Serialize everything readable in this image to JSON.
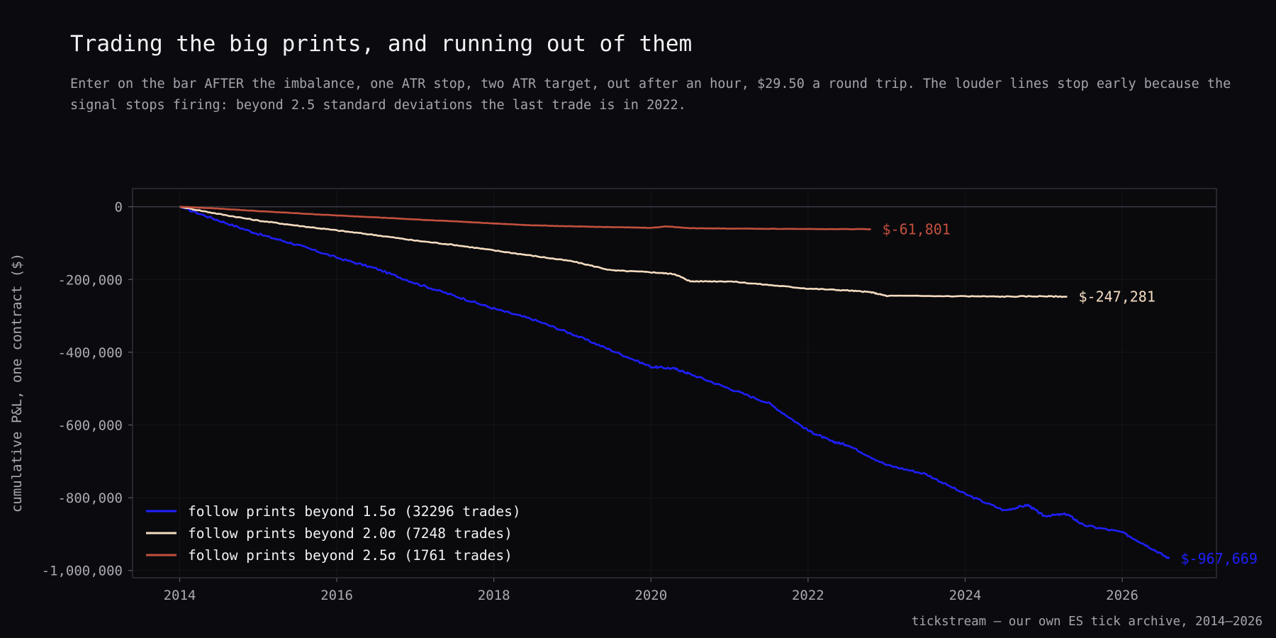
{
  "header": {
    "title": "Trading the big prints, and running out of them",
    "subtitle": "Enter on the bar AFTER the imbalance, one ATR stop, two ATR target, out after an hour, $29.50 a round trip. The louder lines stop early because the signal stops firing: beyond 2.5 standard deviations the last trade is in 2022."
  },
  "footer": {
    "source": "tickstream — our own ES tick archive, 2014–2026"
  },
  "chart_data": {
    "type": "line",
    "title": "Trading the big prints, and running out of them",
    "xlabel": "",
    "ylabel": "cumulative P&L, one contract ($)",
    "xlim": [
      2013.4,
      2027.2
    ],
    "ylim": [
      -1020000,
      50000
    ],
    "x_ticks": [
      2014,
      2016,
      2018,
      2020,
      2022,
      2024,
      2026
    ],
    "x_tick_labels": [
      "2014",
      "2016",
      "2018",
      "2020",
      "2022",
      "2024",
      "2026"
    ],
    "y_ticks": [
      0,
      -200000,
      -400000,
      -600000,
      -800000,
      -1000000
    ],
    "y_tick_labels": [
      "0",
      "-200,000",
      "-400,000",
      "-600,000",
      "-800,000",
      "-1,000,000"
    ],
    "grid": true,
    "legend_position": "bottom-left",
    "series": [
      {
        "name": "follow prints beyond 1.5σ  (32296 trades)",
        "color": "#1f1fff",
        "end_label": "$-967,669",
        "x": [
          2014.0,
          2014.5,
          2015.0,
          2015.5,
          2016.0,
          2016.5,
          2017.0,
          2017.5,
          2018.0,
          2018.5,
          2019.0,
          2019.5,
          2020.0,
          2020.3,
          2020.5,
          2021.0,
          2021.5,
          2022.0,
          2022.3,
          2022.5,
          2023.0,
          2023.5,
          2024.0,
          2024.5,
          2024.8,
          2025.0,
          2025.3,
          2025.5,
          2026.0,
          2026.3,
          2026.6
        ],
        "y": [
          0,
          -38000,
          -75000,
          -105000,
          -140000,
          -170000,
          -210000,
          -245000,
          -280000,
          -310000,
          -350000,
          -395000,
          -440000,
          -445000,
          -460000,
          -500000,
          -540000,
          -615000,
          -645000,
          -655000,
          -710000,
          -735000,
          -790000,
          -835000,
          -820000,
          -850000,
          -845000,
          -875000,
          -895000,
          -930000,
          -967669
        ]
      },
      {
        "name": "follow prints beyond 2.0σ  (7248 trades)",
        "color": "#f5dcc0",
        "end_label": "$-247,281",
        "x": [
          2014.0,
          2014.5,
          2015.0,
          2015.5,
          2016.0,
          2016.5,
          2017.0,
          2017.5,
          2018.0,
          2018.5,
          2019.0,
          2019.5,
          2020.0,
          2020.3,
          2020.5,
          2021.0,
          2021.5,
          2022.0,
          2022.5,
          2022.8,
          2023.0,
          2024.0,
          2024.5,
          2025.0,
          2025.3
        ],
        "y": [
          0,
          -20000,
          -38000,
          -52000,
          -65000,
          -78000,
          -93000,
          -105000,
          -120000,
          -135000,
          -150000,
          -175000,
          -180000,
          -185000,
          -205000,
          -205000,
          -215000,
          -225000,
          -230000,
          -235000,
          -245000,
          -246000,
          -247000,
          -246000,
          -247281
        ]
      },
      {
        "name": "follow prints beyond 2.5σ  (1761 trades)",
        "color": "#c4503c",
        "end_label": "$-61,801",
        "x": [
          2014.0,
          2014.5,
          2015.0,
          2015.5,
          2016.0,
          2016.5,
          2017.0,
          2017.5,
          2018.0,
          2018.5,
          2019.0,
          2019.5,
          2020.0,
          2020.2,
          2020.5,
          2021.0,
          2022.0,
          2022.8
        ],
        "y": [
          0,
          -5000,
          -12000,
          -18000,
          -24000,
          -29000,
          -35000,
          -40000,
          -46000,
          -51000,
          -54000,
          -56000,
          -58000,
          -54000,
          -59000,
          -60000,
          -61000,
          -61801
        ]
      }
    ]
  }
}
